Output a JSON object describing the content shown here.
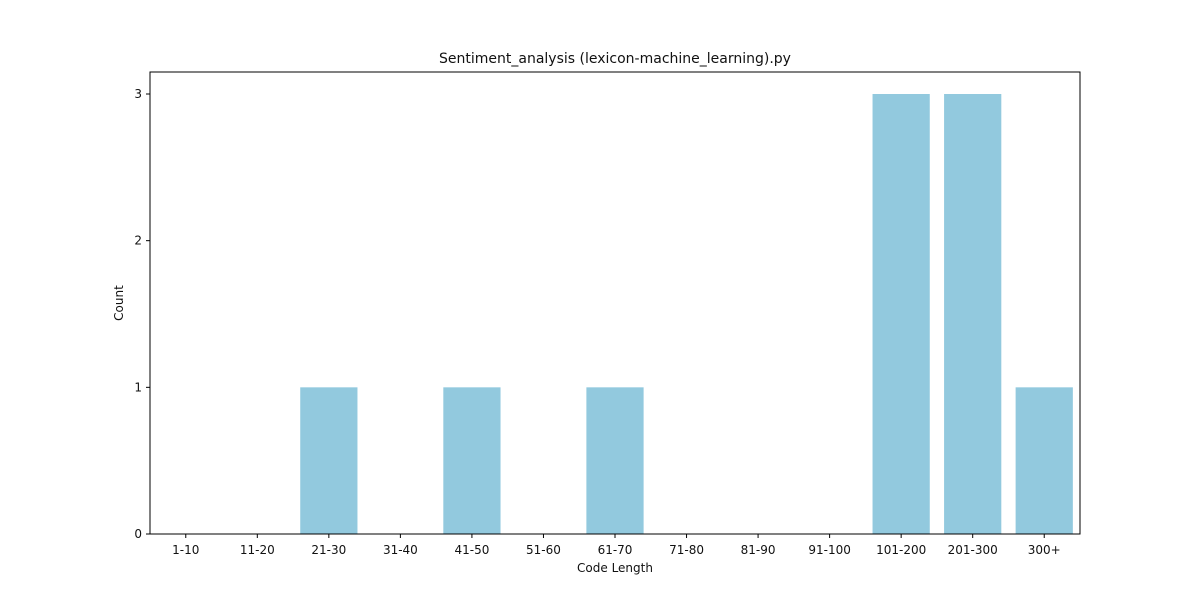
{
  "chart_data": {
    "type": "bar",
    "title": "Sentiment_analysis (lexicon-machine_learning).py",
    "xlabel": "Code Length",
    "ylabel": "Count",
    "categories": [
      "1-10",
      "11-20",
      "21-30",
      "31-40",
      "41-50",
      "51-60",
      "61-70",
      "71-80",
      "81-90",
      "91-100",
      "101-200",
      "201-300",
      "300+"
    ],
    "values": [
      0,
      0,
      1,
      0,
      1,
      0,
      1,
      0,
      0,
      0,
      3,
      3,
      1
    ],
    "ylim": [
      0,
      3.15
    ],
    "yticks": [
      0,
      1,
      2,
      3
    ],
    "grid": false,
    "bar_color": "#92c9de"
  }
}
